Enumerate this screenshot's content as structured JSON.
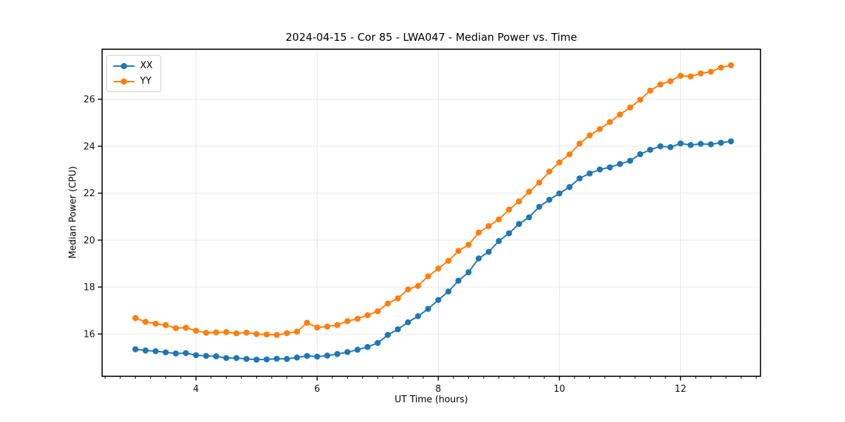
{
  "figure": {
    "title": "2024-04-15 - Cor 85 - LWA047 - Median Power vs. Time",
    "xlabel": "UT Time (hours)",
    "ylabel": "Median Power (CPU)"
  },
  "chart_data": {
    "type": "line",
    "title": "2024-04-15 - Cor 85 - LWA047 - Median Power vs. Time",
    "xlabel": "UT Time (hours)",
    "ylabel": "Median Power (CPU)",
    "grid": true,
    "legend_position": "upper left",
    "xlim": [
      2.45,
      13.32
    ],
    "ylim": [
      14.2,
      28.13
    ],
    "xticks": [
      4,
      6,
      8,
      10,
      12
    ],
    "yticks": [
      16,
      18,
      20,
      22,
      24,
      26
    ],
    "x_minor_step": 0.25,
    "x": [
      3.0,
      3.167,
      3.333,
      3.5,
      3.667,
      3.833,
      4.0,
      4.167,
      4.333,
      4.5,
      4.667,
      4.833,
      5.0,
      5.167,
      5.333,
      5.5,
      5.667,
      5.833,
      6.0,
      6.167,
      6.333,
      6.5,
      6.667,
      6.833,
      7.0,
      7.167,
      7.333,
      7.5,
      7.667,
      7.833,
      8.0,
      8.167,
      8.333,
      8.5,
      8.667,
      8.833,
      9.0,
      9.167,
      9.333,
      9.5,
      9.667,
      9.833,
      10.0,
      10.167,
      10.333,
      10.5,
      10.667,
      10.833,
      11.0,
      11.167,
      11.333,
      11.5,
      11.667,
      11.833,
      12.0,
      12.167,
      12.333,
      12.5,
      12.667,
      12.833
    ],
    "series": [
      {
        "name": "XX",
        "color": "#1f77b4",
        "values": [
          15.35,
          15.3,
          15.27,
          15.22,
          15.17,
          15.19,
          15.1,
          15.07,
          15.05,
          14.98,
          14.98,
          14.94,
          14.91,
          14.92,
          14.95,
          14.94,
          15.0,
          15.07,
          15.04,
          15.08,
          15.15,
          15.23,
          15.33,
          15.45,
          15.62,
          15.96,
          16.2,
          16.5,
          16.76,
          17.07,
          17.45,
          17.81,
          18.27,
          18.63,
          19.22,
          19.5,
          19.96,
          20.29,
          20.69,
          20.97,
          21.42,
          21.72,
          21.99,
          22.26,
          22.63,
          22.84,
          23.01,
          23.1,
          23.24,
          23.38,
          23.66,
          23.85,
          24.0,
          23.96,
          24.12,
          24.05,
          24.1,
          24.08,
          24.15,
          24.21
        ]
      },
      {
        "name": "YY",
        "color": "#ff7f0e",
        "values": [
          16.68,
          16.52,
          16.44,
          16.38,
          16.25,
          16.27,
          16.14,
          16.05,
          16.07,
          16.08,
          16.03,
          16.06,
          16.0,
          15.98,
          15.96,
          16.04,
          16.1,
          16.48,
          16.28,
          16.32,
          16.38,
          16.55,
          16.65,
          16.8,
          16.97,
          17.3,
          17.52,
          17.9,
          18.05,
          18.46,
          18.79,
          19.12,
          19.54,
          19.8,
          20.32,
          20.6,
          20.88,
          21.3,
          21.65,
          22.06,
          22.45,
          22.92,
          23.31,
          23.65,
          24.11,
          24.46,
          24.73,
          25.03,
          25.35,
          25.65,
          25.98,
          26.37,
          26.63,
          26.77,
          27.0,
          26.97,
          27.1,
          27.17,
          27.35,
          27.45
        ]
      }
    ]
  }
}
